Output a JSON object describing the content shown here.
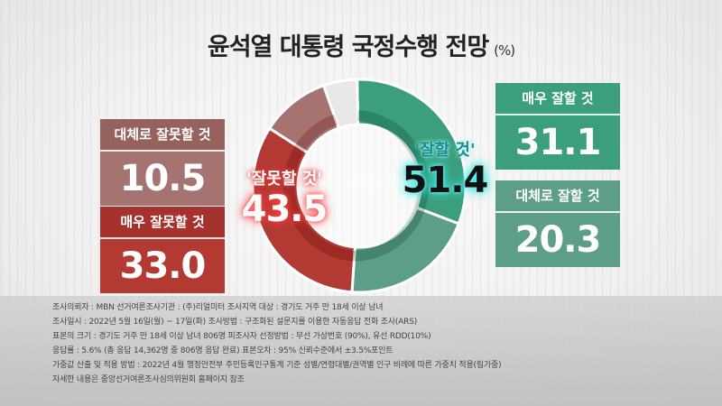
{
  "title": "윤석열 대통령 국정수행 전망",
  "unit": "(%)",
  "colors": {
    "very_good": "#3b9e7c",
    "somewhat_good": "#5d9e88",
    "very_bad": "#b23a33",
    "somewhat_bad": "#a57470",
    "unknown": "#e8e8e8",
    "good_glow": "#38e0e0",
    "bad_glow": "#ff6a6a"
  },
  "chart_data": {
    "type": "pie",
    "title": "윤석열 대통령 국정수행 전망",
    "unit": "(%)",
    "slices": [
      {
        "label": "매우 잘할 것",
        "value": 31.1
      },
      {
        "label": "대체로 잘할 것",
        "value": 20.3
      },
      {
        "label": "매우 잘못할 것",
        "value": 33.0
      },
      {
        "label": "대체로 잘못할 것",
        "value": 10.5
      },
      {
        "label": "",
        "value": 5.1
      }
    ],
    "groups": [
      {
        "label": "'잘할 것'",
        "value": "51.4"
      },
      {
        "label": "'잘못할 것'",
        "value": "43.5"
      }
    ]
  },
  "boxes": {
    "very_good": {
      "label": "매우 잘할 것",
      "value": "31.1"
    },
    "somewhat_good": {
      "label": "대체로 잘할 것",
      "value": "20.3"
    },
    "somewhat_bad": {
      "label": "대체로 잘못할 것",
      "value": "10.5"
    },
    "very_bad": {
      "label": "매우 잘못할 것",
      "value": "33.0"
    }
  },
  "footer": [
    "조사의뢰자 : MBN        선거여론조사기관 : (주)리얼미터        조사지역 대상 : 경기도 거주 만 18세 이상 남녀",
    "조사일시 : 2022년 5월 16일(월) ~ 17일(화)        조사방법 : 구조화된 설문지를 이용한 자동응답 전화 조사(ARS)",
    "표본의 크기 : 경기도 거주 만 18세 이상 남녀 806명        피조사자 선정방법 : 무선 가상번호 (90%), 유선 RDD(10%)",
    "응답률 : 5.6% (총 응답 14,362명 중 806명 응답 완료)        표본오차 : 95% 신뢰수준에서 ±3.5%포인트",
    "가중값 산출 및 적용 방법 : 2022년 4월 행정안전부 주민등록인구통계 기준 성별/연령대별/권역별 인구 비례에 따른 가중치 적용(림가중)",
    "자세한 내용은 중앙선거여론조사심의위원회 홈페이지 참조"
  ]
}
